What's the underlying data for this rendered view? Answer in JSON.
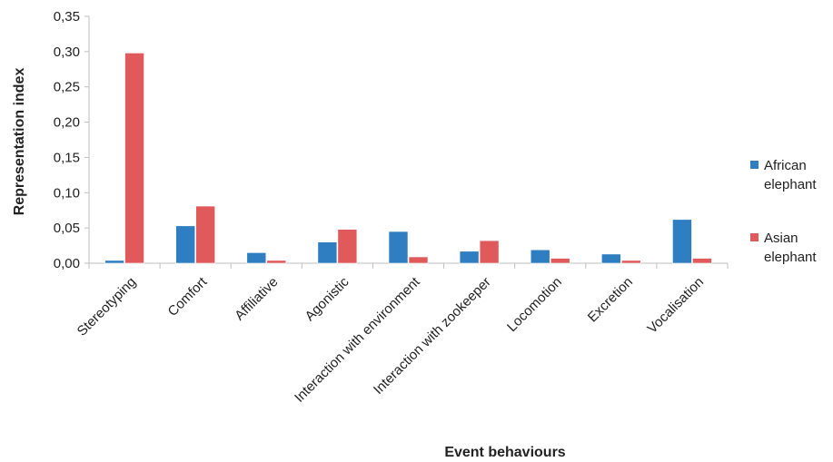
{
  "chart_data": {
    "type": "bar",
    "title": "",
    "xlabel": "Event behaviours",
    "ylabel": "Representation index",
    "ylim": [
      0,
      0.35
    ],
    "yticks": [
      "0,00",
      "0,05",
      "0,10",
      "0,15",
      "0,20",
      "0,25",
      "0,30",
      "0,35"
    ],
    "categories": [
      "Stereotyping",
      "Comfort",
      "Affiliative",
      "Agonistic",
      "Interaction with environment",
      "Interaction with zookeeper",
      "Locomotion",
      "Excretion",
      "Vocalisation"
    ],
    "series": [
      {
        "name_lines": [
          "African",
          "elephant"
        ],
        "color": "#2e7ec1",
        "values": [
          0.004,
          0.053,
          0.015,
          0.03,
          0.045,
          0.017,
          0.019,
          0.013,
          0.062
        ]
      },
      {
        "name_lines": [
          "Asian",
          "elephant"
        ],
        "color": "#e05a5b",
        "values": [
          0.298,
          0.081,
          0.004,
          0.048,
          0.009,
          0.032,
          0.007,
          0.004,
          0.007
        ]
      }
    ],
    "grid": false,
    "legend": "right"
  }
}
